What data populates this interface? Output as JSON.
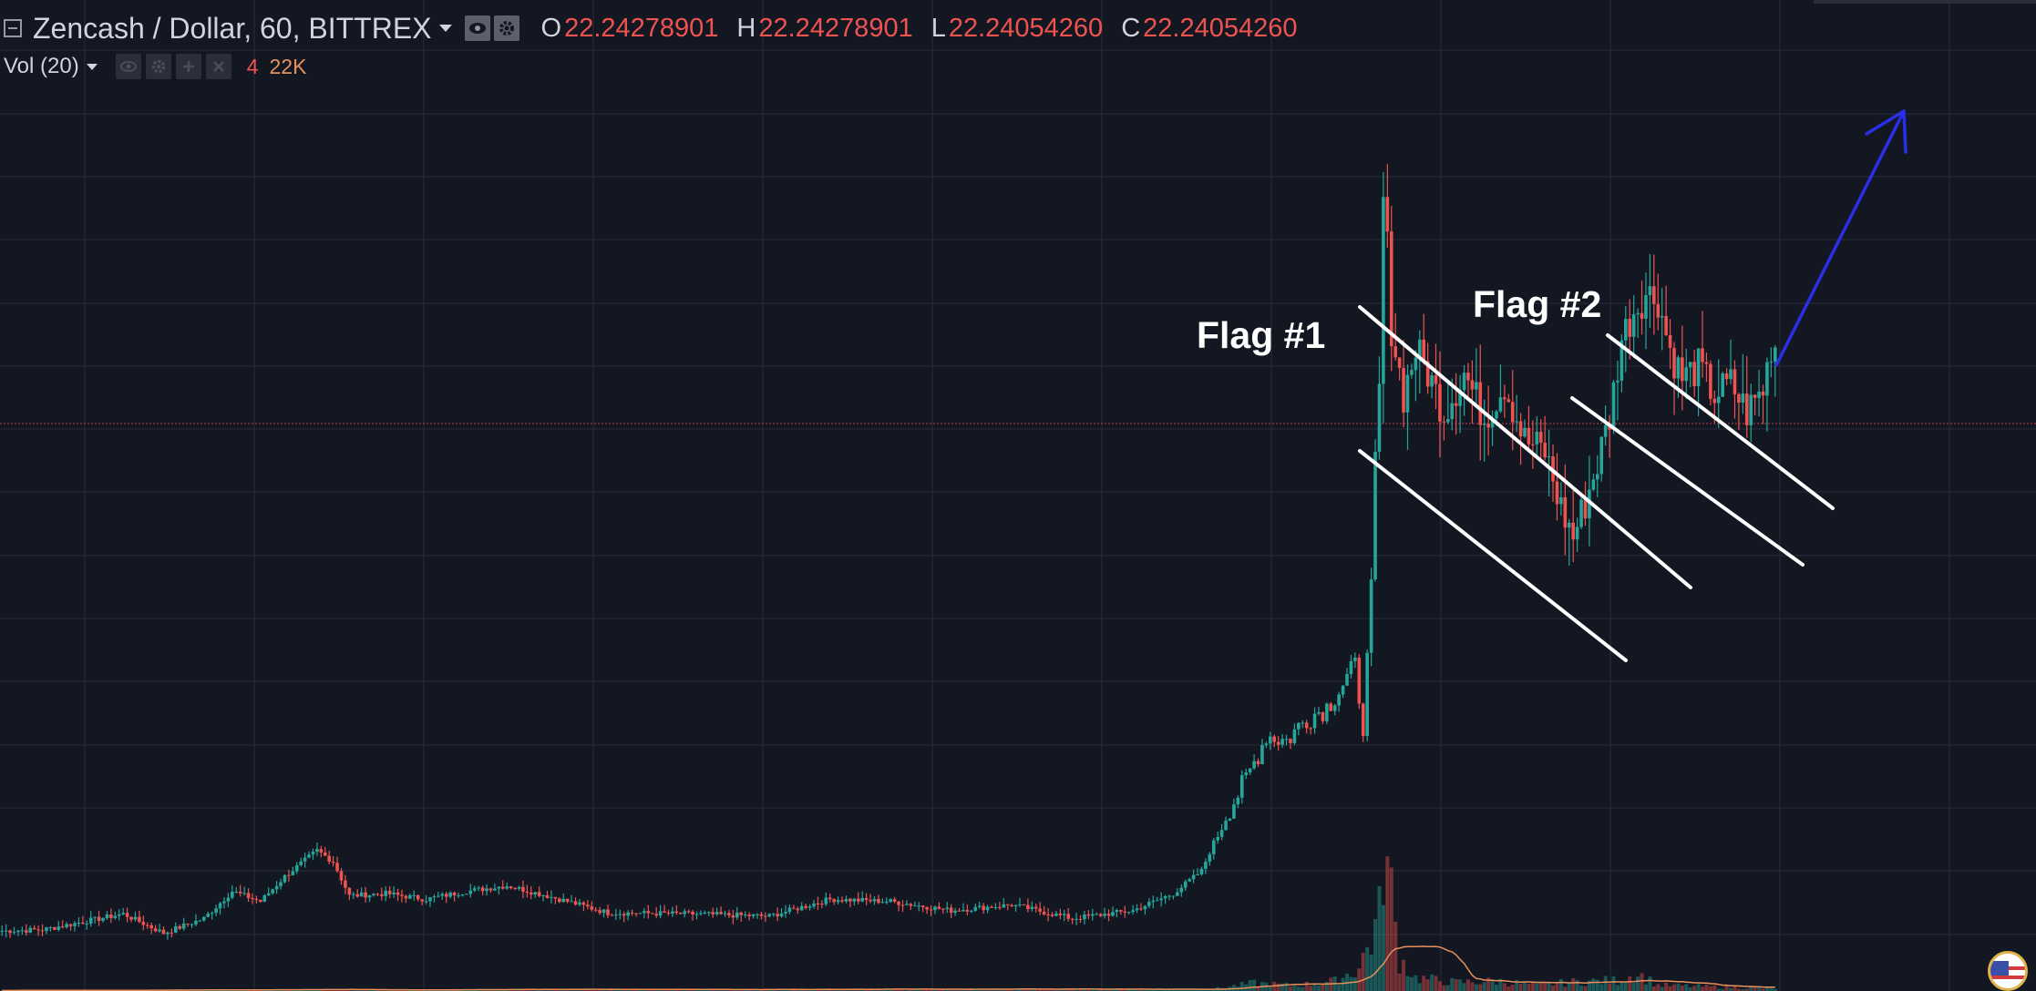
{
  "header": {
    "symbol": "Zencash / Dollar, 60, BITTREX",
    "ohlc": [
      {
        "label": "O",
        "value": "22.24278901"
      },
      {
        "label": "H",
        "value": "22.24278901"
      },
      {
        "label": "L",
        "value": "22.24054260"
      },
      {
        "label": "C",
        "value": "22.24054260"
      }
    ]
  },
  "volume_legend": {
    "label": "Vol (20)",
    "value1": "4",
    "value2": "22K"
  },
  "annotations": {
    "flag1": "Flag #1",
    "flag2": "Flag #2"
  },
  "colors": {
    "background": "#131722",
    "grid": "#2a2e39",
    "up": "#26a69a",
    "down": "#ef5350",
    "volume_ma": "#e8905a",
    "trendline": "#ffffff",
    "arrow": "#2a2ee8",
    "price_line": "#c2424a"
  },
  "chart_data": {
    "type": "candlestick",
    "title": "Zencash / Dollar, 60, BITTREX",
    "interval": "60",
    "exchange": "BITTREX",
    "grid": true,
    "ylim": [
      16.9,
      24.3
    ],
    "current_price": 22.2405426,
    "ohlc_points": [
      {
        "i": 0,
        "c": 17.07
      },
      {
        "i": 10,
        "c": 17.08
      },
      {
        "i": 20,
        "c": 17.15
      },
      {
        "i": 30,
        "c": 17.22
      },
      {
        "i": 40,
        "c": 17.05
      },
      {
        "i": 50,
        "c": 17.18
      },
      {
        "i": 57,
        "c": 17.42
      },
      {
        "i": 64,
        "c": 17.33
      },
      {
        "i": 70,
        "c": 17.55
      },
      {
        "i": 78,
        "c": 17.78
      },
      {
        "i": 82,
        "c": 17.68
      },
      {
        "i": 86,
        "c": 17.38
      },
      {
        "i": 95,
        "c": 17.4
      },
      {
        "i": 105,
        "c": 17.35
      },
      {
        "i": 115,
        "c": 17.42
      },
      {
        "i": 125,
        "c": 17.47
      },
      {
        "i": 135,
        "c": 17.38
      },
      {
        "i": 150,
        "c": 17.23
      },
      {
        "i": 170,
        "c": 17.22
      },
      {
        "i": 190,
        "c": 17.2
      },
      {
        "i": 205,
        "c": 17.35
      },
      {
        "i": 220,
        "c": 17.33
      },
      {
        "i": 235,
        "c": 17.25
      },
      {
        "i": 250,
        "c": 17.3
      },
      {
        "i": 265,
        "c": 17.18
      },
      {
        "i": 280,
        "c": 17.25
      },
      {
        "i": 290,
        "c": 17.4
      },
      {
        "i": 297,
        "c": 17.6
      },
      {
        "i": 303,
        "c": 18.1
      },
      {
        "i": 308,
        "c": 18.4
      },
      {
        "i": 313,
        "c": 18.8
      },
      {
        "i": 318,
        "c": 18.75
      },
      {
        "i": 323,
        "c": 18.95
      },
      {
        "i": 328,
        "c": 19.05
      },
      {
        "i": 332,
        "c": 19.25
      },
      {
        "i": 335,
        "c": 19.4
      },
      {
        "i": 337,
        "c": 18.9
      },
      {
        "i": 339,
        "c": 20.0
      },
      {
        "i": 340,
        "c": 21.4
      },
      {
        "i": 341,
        "c": 21.9
      },
      {
        "i": 342,
        "c": 23.6
      },
      {
        "i": 343,
        "c": 23.1
      },
      {
        "i": 344,
        "c": 22.4
      },
      {
        "i": 347,
        "c": 21.8
      },
      {
        "i": 350,
        "c": 22.2
      },
      {
        "i": 353,
        "c": 22.0
      },
      {
        "i": 357,
        "c": 21.65
      },
      {
        "i": 362,
        "c": 22.0
      },
      {
        "i": 367,
        "c": 21.6
      },
      {
        "i": 372,
        "c": 21.9
      },
      {
        "i": 377,
        "c": 21.4
      },
      {
        "i": 382,
        "c": 21.3
      },
      {
        "i": 386,
        "c": 20.8
      },
      {
        "i": 389,
        "c": 20.55
      },
      {
        "i": 392,
        "c": 20.85
      },
      {
        "i": 395,
        "c": 21.2
      },
      {
        "i": 398,
        "c": 21.6
      },
      {
        "i": 401,
        "c": 22.3
      },
      {
        "i": 404,
        "c": 22.55
      },
      {
        "i": 407,
        "c": 22.7
      },
      {
        "i": 410,
        "c": 22.65
      },
      {
        "i": 413,
        "c": 22.2
      },
      {
        "i": 416,
        "c": 21.95
      },
      {
        "i": 420,
        "c": 22.05
      },
      {
        "i": 424,
        "c": 21.8
      },
      {
        "i": 428,
        "c": 21.9
      },
      {
        "i": 432,
        "c": 21.65
      },
      {
        "i": 436,
        "c": 21.85
      },
      {
        "i": 438,
        "c": 22.24
      }
    ],
    "volume_points": [
      {
        "i": 0,
        "v": 0.1
      },
      {
        "i": 70,
        "v": 0.2
      },
      {
        "i": 300,
        "v": 0.3
      },
      {
        "i": 310,
        "v": 1.2
      },
      {
        "i": 320,
        "v": 0.8
      },
      {
        "i": 330,
        "v": 1.5
      },
      {
        "i": 336,
        "v": 3.5
      },
      {
        "i": 339,
        "v": 8.0
      },
      {
        "i": 341,
        "v": 11.0
      },
      {
        "i": 342,
        "v": 22.0
      },
      {
        "i": 344,
        "v": 14.0
      },
      {
        "i": 346,
        "v": 5.0
      },
      {
        "i": 350,
        "v": 2.0
      },
      {
        "i": 360,
        "v": 1.3
      },
      {
        "i": 370,
        "v": 1.5
      },
      {
        "i": 380,
        "v": 0.9
      },
      {
        "i": 390,
        "v": 1.4
      },
      {
        "i": 400,
        "v": 1.6
      },
      {
        "i": 405,
        "v": 2.6
      },
      {
        "i": 410,
        "v": 0.9
      },
      {
        "i": 420,
        "v": 0.7
      },
      {
        "i": 438,
        "v": 0.4
      }
    ],
    "volume_ma_period": 20,
    "volume_max": 22.0
  }
}
